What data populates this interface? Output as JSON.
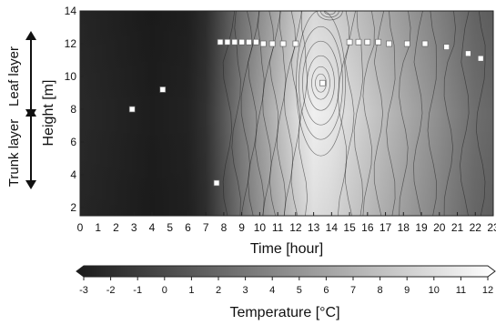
{
  "chart_data": {
    "type": "heatmap",
    "xlabel": "Time [hour]",
    "ylabel": "Height [m]",
    "xlim": [
      0,
      23
    ],
    "ylim": [
      1.5,
      14
    ],
    "x_ticks": [
      "0",
      "1",
      "2",
      "3",
      "4",
      "5",
      "6",
      "7",
      "8",
      "9",
      "10",
      "11",
      "12",
      "13",
      "14",
      "15",
      "16",
      "17",
      "18",
      "19",
      "20",
      "21",
      "22",
      "23"
    ],
    "y_ticks": [
      "2",
      "4",
      "6",
      "8",
      "10",
      "12",
      "14"
    ],
    "layers": [
      {
        "label": "Leaf layer",
        "range": [
          8.5,
          14
        ]
      },
      {
        "label": "Trunk layer",
        "range": [
          2,
          8.5
        ]
      }
    ],
    "colorbar": {
      "label": "Temperature [°C]",
      "min": -3,
      "max": 12,
      "ticks": [
        "-3",
        "-2",
        "-1",
        "0",
        "1",
        "2",
        "3",
        "4",
        "5",
        "6",
        "7",
        "8",
        "9",
        "10",
        "11",
        "12"
      ],
      "color_min": "#1a1a1a",
      "color_max": "#ffffff"
    },
    "field": {
      "hours": [
        0,
        2,
        4,
        6,
        7,
        8,
        9,
        10,
        11,
        12,
        13,
        14,
        15,
        16,
        17,
        18,
        19,
        20,
        21,
        22,
        23
      ],
      "temperature_c": [
        -2.0,
        -2.4,
        -2.8,
        -2.5,
        -1.5,
        1.0,
        3.5,
        5.5,
        7.5,
        9.5,
        11.0,
        10.5,
        9.5,
        8.5,
        7.5,
        6.5,
        5.5,
        4.5,
        3.5,
        2.5,
        2.0
      ]
    },
    "sensor_points": [
      {
        "hour": 2.9,
        "height": 8.0
      },
      {
        "hour": 4.6,
        "height": 9.2
      },
      {
        "hour": 7.6,
        "height": 3.5
      },
      {
        "hour": 7.8,
        "height": 12.1
      },
      {
        "hour": 8.2,
        "height": 12.1
      },
      {
        "hour": 8.6,
        "height": 12.1
      },
      {
        "hour": 9.0,
        "height": 12.1
      },
      {
        "hour": 9.4,
        "height": 12.1
      },
      {
        "hour": 9.8,
        "height": 12.1
      },
      {
        "hour": 10.2,
        "height": 12.0
      },
      {
        "hour": 10.7,
        "height": 12.0
      },
      {
        "hour": 11.3,
        "height": 12.0
      },
      {
        "hour": 12.0,
        "height": 12.0
      },
      {
        "hour": 15.0,
        "height": 12.1
      },
      {
        "hour": 15.5,
        "height": 12.1
      },
      {
        "hour": 16.0,
        "height": 12.1
      },
      {
        "hour": 16.6,
        "height": 12.1
      },
      {
        "hour": 17.2,
        "height": 12.0
      },
      {
        "hour": 18.2,
        "height": 12.0
      },
      {
        "hour": 19.2,
        "height": 12.0
      },
      {
        "hour": 20.4,
        "height": 11.8
      },
      {
        "hour": 21.6,
        "height": 11.4
      },
      {
        "hour": 22.3,
        "height": 11.1
      },
      {
        "hour": 13.5,
        "height": 9.6
      }
    ]
  }
}
